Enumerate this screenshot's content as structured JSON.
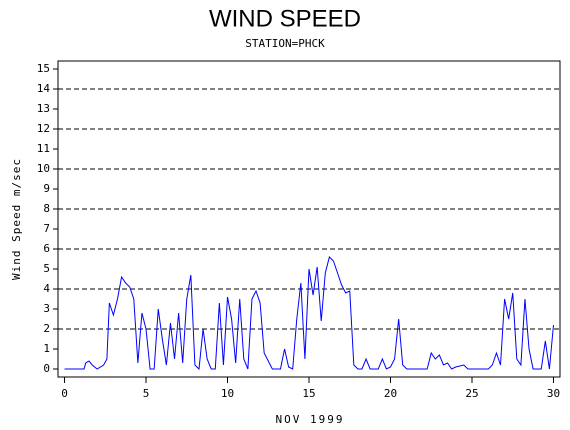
{
  "chart_data": {
    "type": "line",
    "title": "WIND SPEED",
    "subtitle": "STATION=PHCK",
    "x_label": "NOV 1999",
    "y_label": "Wind Speed m/sec",
    "xlim": [
      -0.4,
      30.4
    ],
    "ylim": [
      -0.4,
      15.4
    ],
    "xticks": [
      0,
      5,
      10,
      15,
      20,
      25,
      30
    ],
    "yticks": [
      0,
      1,
      2,
      3,
      4,
      5,
      6,
      7,
      8,
      9,
      10,
      11,
      12,
      13,
      14,
      15
    ],
    "grid_lines": [
      2,
      4,
      6,
      8,
      10,
      12,
      14
    ],
    "x": [
      0,
      1.2,
      1.3,
      1.5,
      1.7,
      2,
      2.4,
      2.6,
      2.75,
      3,
      3.25,
      3.5,
      3.75,
      4,
      4.25,
      4.5,
      4.75,
      5,
      5.25,
      5.5,
      5.75,
      6,
      6.25,
      6.5,
      6.75,
      7,
      7.25,
      7.5,
      7.75,
      8,
      8.25,
      8.5,
      8.75,
      9,
      9.25,
      9.5,
      9.75,
      10,
      10.25,
      10.5,
      10.75,
      11,
      11.25,
      11.5,
      11.75,
      12,
      12.25,
      12.5,
      12.75,
      13.25,
      13.5,
      13.75,
      14,
      14.25,
      14.5,
      14.75,
      15,
      15.25,
      15.5,
      15.75,
      16,
      16.25,
      16.5,
      16.75,
      17,
      17.25,
      17.5,
      17.75,
      18,
      18.25,
      18.5,
      18.75,
      19.25,
      19.5,
      19.75,
      20,
      20.25,
      20.5,
      20.75,
      21,
      22.25,
      22.5,
      22.75,
      23,
      23.25,
      23.5,
      23.75,
      24,
      24.5,
      24.75,
      26,
      26.25,
      26.5,
      26.75,
      27,
      27.25,
      27.5,
      27.75,
      28,
      28.25,
      28.5,
      28.75,
      29.25,
      29.5,
      29.75,
      30
    ],
    "series": [
      {
        "name": "Wind Speed",
        "color": "#0000ff",
        "values": [
          0,
          0,
          0.3,
          0.4,
          0.2,
          0,
          0.2,
          0.5,
          3.3,
          2.7,
          3.5,
          4.6,
          4.3,
          4.1,
          3.5,
          0.3,
          2.8,
          2,
          0,
          0,
          3.0,
          1.5,
          0.2,
          2.3,
          0.5,
          2.8,
          0.3,
          3.5,
          4.7,
          0.2,
          0,
          2.0,
          0.5,
          0,
          0,
          3.3,
          0.2,
          3.6,
          2.5,
          0.3,
          3.5,
          0.5,
          0,
          3.5,
          3.9,
          3.3,
          0.8,
          0.4,
          0,
          0,
          1.0,
          0.1,
          0,
          2.5,
          4.3,
          0.5,
          5.0,
          3.7,
          5.1,
          2.4,
          4.8,
          5.6,
          5.4,
          4.8,
          4.2,
          3.8,
          3.9,
          0.2,
          0,
          0,
          0.5,
          0,
          0,
          0.5,
          0,
          0.1,
          0.5,
          2.5,
          0.2,
          0,
          0,
          0.8,
          0.5,
          0.7,
          0.2,
          0.3,
          0,
          0.1,
          0.2,
          0,
          0,
          0.2,
          0.8,
          0.2,
          3.5,
          2.5,
          3.8,
          0.5,
          0.2,
          3.5,
          1.0,
          0,
          0,
          1.4,
          0,
          2.2
        ]
      }
    ]
  }
}
